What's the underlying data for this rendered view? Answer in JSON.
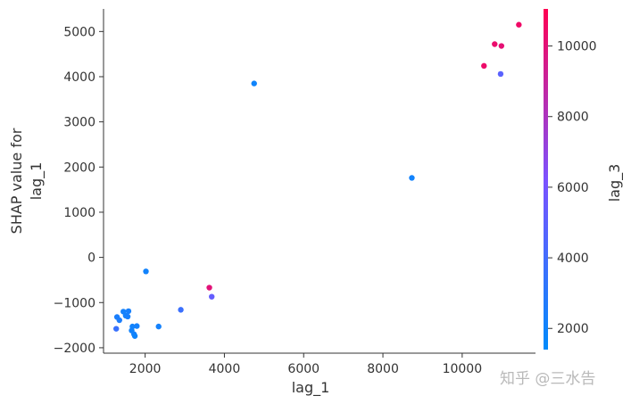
{
  "chart_data": {
    "type": "scatter",
    "title": "",
    "xlabel": "lag_1",
    "ylabel_lines": [
      "SHAP value for",
      "lag_1"
    ],
    "xlim": [
      950,
      11850
    ],
    "ylim": [
      -2120,
      5500
    ],
    "xticks": [
      2000,
      4000,
      6000,
      8000,
      10000
    ],
    "yticks": [
      -2000,
      -1000,
      0,
      1000,
      2000,
      3000,
      4000,
      5000
    ],
    "xtick_labels": [
      "2000",
      "4000",
      "6000",
      "8000",
      "10000"
    ],
    "ytick_labels": [
      "−2000",
      "−1000",
      "0",
      "1000",
      "2000",
      "3000",
      "4000",
      "5000"
    ],
    "colorbar": {
      "label": "lag_3",
      "range": [
        1400,
        11050
      ],
      "ticks": [
        2000,
        4000,
        6000,
        8000,
        10000
      ],
      "tick_labels": [
        "2000",
        "4000",
        "6000",
        "8000",
        "10000"
      ],
      "colors": [
        "#008bfb",
        "#ff0052"
      ]
    },
    "points": [
      {
        "x": 11430,
        "y": 5150,
        "c": 10500
      },
      {
        "x": 10820,
        "y": 4720,
        "c": 10300
      },
      {
        "x": 10990,
        "y": 4680,
        "c": 10100
      },
      {
        "x": 10550,
        "y": 4240,
        "c": 10400
      },
      {
        "x": 10970,
        "y": 4060,
        "c": 4900
      },
      {
        "x": 4750,
        "y": 3850,
        "c": 2000
      },
      {
        "x": 8730,
        "y": 1760,
        "c": 2100
      },
      {
        "x": 2020,
        "y": -310,
        "c": 2100
      },
      {
        "x": 3620,
        "y": -670,
        "c": 10000
      },
      {
        "x": 3680,
        "y": -870,
        "c": 5300
      },
      {
        "x": 2900,
        "y": -1160,
        "c": 3700
      },
      {
        "x": 1450,
        "y": -1200,
        "c": 2200
      },
      {
        "x": 1580,
        "y": -1190,
        "c": 2300
      },
      {
        "x": 1510,
        "y": -1290,
        "c": 2200
      },
      {
        "x": 1560,
        "y": -1310,
        "c": 2300
      },
      {
        "x": 1290,
        "y": -1320,
        "c": 2400
      },
      {
        "x": 1350,
        "y": -1390,
        "c": 2500
      },
      {
        "x": 1680,
        "y": -1530,
        "c": 2100
      },
      {
        "x": 1790,
        "y": -1520,
        "c": 2200
      },
      {
        "x": 2340,
        "y": -1530,
        "c": 2200
      },
      {
        "x": 1270,
        "y": -1580,
        "c": 3600
      },
      {
        "x": 1660,
        "y": -1620,
        "c": 2100
      },
      {
        "x": 1720,
        "y": -1700,
        "c": 2200
      },
      {
        "x": 1740,
        "y": -1740,
        "c": 2000
      }
    ]
  },
  "watermark": "知乎 @三水告"
}
